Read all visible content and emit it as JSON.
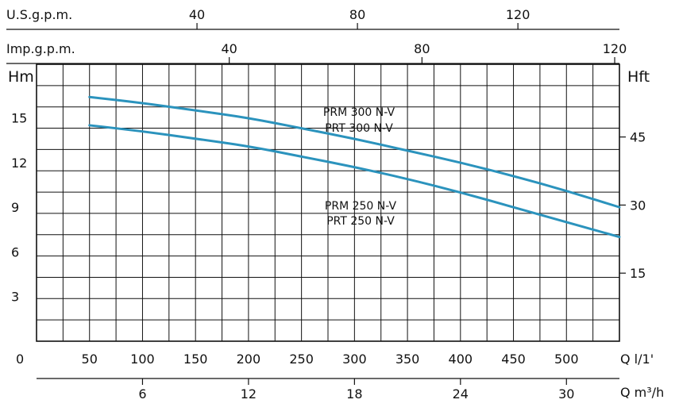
{
  "chart_data": {
    "type": "line",
    "axes": {
      "left": {
        "label": "Hm",
        "ticks": [
          "3",
          "6",
          "9",
          "12",
          "15"
        ],
        "tick_values": [
          3,
          6,
          9,
          12,
          15
        ],
        "range": [
          0,
          18.6
        ]
      },
      "right": {
        "label": "Hft",
        "ticks": [
          "15",
          "30",
          "45"
        ],
        "tick_values": [
          15,
          30,
          45
        ]
      },
      "bottom": {
        "label": "Q l/1'",
        "origin": "0",
        "ticks": [
          "50",
          "100",
          "150",
          "200",
          "250",
          "300",
          "350",
          "400",
          "450",
          "500"
        ],
        "tick_values": [
          50,
          100,
          150,
          200,
          250,
          300,
          350,
          400,
          450,
          500
        ],
        "range": [
          0,
          550
        ]
      },
      "bottom2": {
        "label": "Q m³/h",
        "ticks": [
          "6",
          "12",
          "18",
          "24",
          "30"
        ],
        "tick_values": [
          6,
          12,
          18,
          24,
          30
        ]
      },
      "top1": {
        "label": "U.S.g.p.m.",
        "ticks": [
          "40",
          "80",
          "120"
        ],
        "tick_values": [
          40,
          80,
          120
        ]
      },
      "top2": {
        "label": "Imp.g.p.m.",
        "ticks": [
          "40",
          "80",
          "120"
        ],
        "tick_values": [
          40,
          80,
          120
        ]
      }
    },
    "grid": true,
    "series": [
      {
        "name_lines": [
          "PRM 300 N-V",
          "PRT 300 N-V"
        ],
        "color": "#2b93bd",
        "x": [
          50,
          100,
          150,
          200,
          250,
          300,
          350,
          400,
          450,
          500,
          550
        ],
        "y": [
          16.4,
          16.0,
          15.5,
          15.0,
          14.3,
          13.6,
          12.8,
          12.0,
          11.1,
          10.1,
          9.0
        ]
      },
      {
        "name_lines": [
          "PRM 250 N-V",
          "PRT 250 N-V"
        ],
        "color": "#2b93bd",
        "x": [
          50,
          100,
          150,
          200,
          250,
          300,
          350,
          400,
          450,
          500,
          550
        ],
        "y": [
          14.5,
          14.1,
          13.6,
          13.1,
          12.4,
          11.7,
          10.9,
          10.0,
          9.0,
          8.0,
          7.0
        ]
      }
    ]
  }
}
